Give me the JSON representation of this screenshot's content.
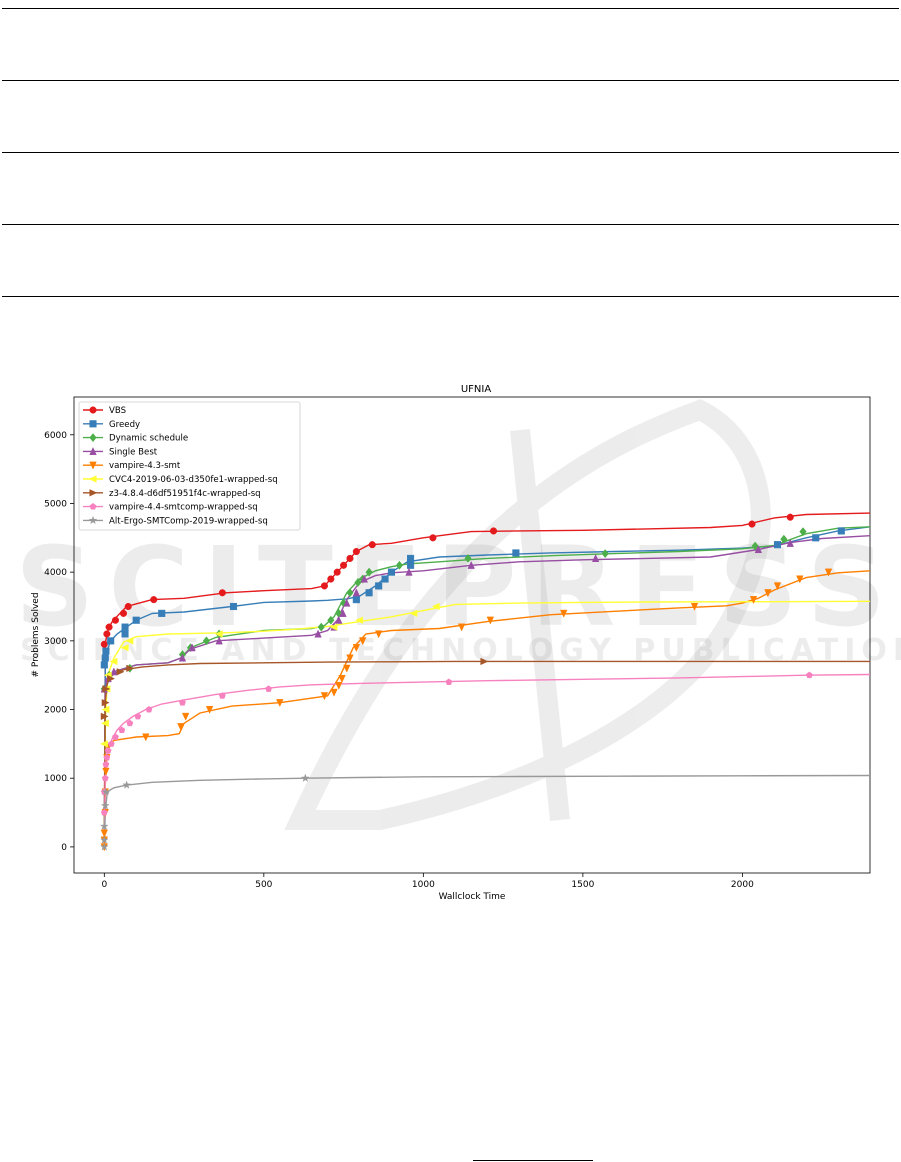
{
  "chart_data": {
    "type": "line",
    "title": "UFNIA",
    "xlabel": "Wallclock Time",
    "ylabel": "# Problems Solved",
    "xlim": [
      -95,
      2400
    ],
    "ylim": [
      -380,
      6550
    ],
    "xticks": [
      0,
      500,
      1000,
      1500,
      2000
    ],
    "yticks": [
      0,
      1000,
      2000,
      3000,
      4000,
      5000,
      6000
    ],
    "grid": false,
    "legend_position": "top-left",
    "series": [
      {
        "name": "VBS",
        "color": "#e41a1c",
        "marker": "circle",
        "x": [
          0,
          3,
          8,
          15,
          25,
          45,
          70,
          150,
          250,
          380,
          500,
          650,
          690,
          710,
          730,
          760,
          790,
          830,
          900,
          1000,
          1150,
          1300,
          1500,
          1700,
          1900,
          2000,
          2100,
          2200,
          2400
        ],
        "y": [
          0,
          2950,
          3100,
          3200,
          3280,
          3380,
          3500,
          3600,
          3620,
          3700,
          3730,
          3760,
          3800,
          3900,
          4000,
          4150,
          4300,
          4400,
          4420,
          4500,
          4590,
          4600,
          4610,
          4630,
          4650,
          4680,
          4790,
          4840,
          4860
        ]
      },
      {
        "name": "Greedy",
        "color": "#377eb8",
        "marker": "square",
        "x": [
          0,
          3,
          8,
          20,
          40,
          70,
          100,
          150,
          250,
          400,
          500,
          650,
          700,
          730,
          760,
          800,
          850,
          900,
          950,
          1050,
          1200,
          1400,
          1600,
          1800,
          2000,
          2100,
          2200,
          2300,
          2400
        ],
        "y": [
          0,
          2650,
          2850,
          3000,
          3100,
          3200,
          3300,
          3400,
          3420,
          3500,
          3560,
          3580,
          3590,
          3600,
          3610,
          3650,
          3800,
          4000,
          4150,
          4220,
          4250,
          4280,
          4300,
          4320,
          4350,
          4380,
          4500,
          4600,
          4660
        ]
      },
      {
        "name": "Dynamic schedule",
        "color": "#4daf4a",
        "marker": "diamond",
        "x": [
          0,
          3,
          10,
          30,
          100,
          200,
          240,
          270,
          350,
          500,
          650,
          690,
          720,
          760,
          800,
          850,
          900,
          950,
          1050,
          1200,
          1400,
          1600,
          1800,
          2000,
          2100,
          2200,
          2300,
          2400
        ],
        "y": [
          0,
          2300,
          2450,
          2550,
          2650,
          2680,
          2750,
          2900,
          3050,
          3150,
          3180,
          3220,
          3350,
          3700,
          3900,
          4020,
          4080,
          4120,
          4150,
          4200,
          4240,
          4270,
          4300,
          4340,
          4390,
          4560,
          4640,
          4660
        ]
      },
      {
        "name": "Single Best",
        "color": "#984ea3",
        "marker": "triangle-up",
        "x": [
          0,
          3,
          10,
          30,
          100,
          200,
          240,
          270,
          350,
          500,
          650,
          700,
          730,
          760,
          800,
          850,
          900,
          1000,
          1150,
          1300,
          1500,
          1700,
          1900,
          2050,
          2150,
          2250,
          2400
        ],
        "y": [
          0,
          2300,
          2450,
          2550,
          2650,
          2680,
          2750,
          2880,
          3000,
          3040,
          3080,
          3150,
          3300,
          3600,
          3850,
          3950,
          3990,
          4020,
          4100,
          4150,
          4180,
          4200,
          4220,
          4330,
          4430,
          4490,
          4530
        ]
      },
      {
        "name": "vampire-4.3-smt",
        "color": "#ff7f00",
        "marker": "triangle-down",
        "x": [
          0,
          3,
          8,
          15,
          30,
          100,
          200,
          235,
          250,
          300,
          400,
          550,
          700,
          740,
          780,
          820,
          900,
          1050,
          1200,
          1400,
          1600,
          1800,
          1950,
          2000,
          2050,
          2100,
          2200,
          2300,
          2400
        ],
        "y": [
          0,
          900,
          1300,
          1480,
          1550,
          1600,
          1620,
          1650,
          1800,
          1950,
          2050,
          2100,
          2200,
          2500,
          2900,
          3100,
          3150,
          3180,
          3280,
          3380,
          3430,
          3480,
          3510,
          3550,
          3620,
          3740,
          3920,
          3990,
          4020
        ]
      },
      {
        "name": "CVC4-2019-06-03-d350fe1-wrapped-sq",
        "color": "#ffff33",
        "marker": "triangle-left",
        "x": [
          0,
          3,
          8,
          15,
          30,
          60,
          100,
          200,
          300,
          400,
          500,
          600,
          700,
          800,
          900,
          1000,
          1100,
          1300,
          1500,
          1700,
          1900,
          2100,
          2400
        ],
        "y": [
          0,
          1800,
          2300,
          2550,
          2750,
          2980,
          3060,
          3100,
          3110,
          3120,
          3140,
          3170,
          3210,
          3280,
          3350,
          3440,
          3530,
          3550,
          3560,
          3565,
          3568,
          3570,
          3575
        ]
      },
      {
        "name": "z3-4.8.4-d6df51951f4c-wrapped-sq",
        "color": "#a65628",
        "marker": "triangle-right",
        "x": [
          0,
          3,
          8,
          15,
          30,
          60,
          120,
          200,
          300,
          500,
          700,
          900,
          1100,
          1190,
          1400,
          1800,
          2400
        ],
        "y": [
          0,
          2100,
          2350,
          2450,
          2520,
          2580,
          2620,
          2650,
          2670,
          2680,
          2690,
          2695,
          2700,
          2700,
          2700,
          2700,
          2700
        ]
      },
      {
        "name": "vampire-4.4-smtcomp-wrapped-sq",
        "color": "#f781bf",
        "marker": "pentagon",
        "x": [
          0,
          3,
          8,
          15,
          25,
          40,
          60,
          90,
          130,
          180,
          250,
          350,
          450,
          550,
          650,
          800,
          1000,
          1200,
          1500,
          1800,
          2000,
          2200,
          2400
        ],
        "y": [
          0,
          1000,
          1300,
          1450,
          1580,
          1700,
          1800,
          1900,
          2000,
          2080,
          2140,
          2220,
          2280,
          2330,
          2360,
          2380,
          2400,
          2420,
          2440,
          2460,
          2480,
          2500,
          2510
        ]
      },
      {
        "name": "Alt-Ergo-SMTComp-2019-wrapped-sq",
        "color": "#999999",
        "marker": "star",
        "x": [
          0,
          3,
          8,
          15,
          30,
          70,
          150,
          300,
          500,
          630,
          800,
          1000,
          1300,
          1600,
          2000,
          2400
        ],
        "y": [
          0,
          500,
          750,
          820,
          860,
          900,
          940,
          970,
          990,
          1000,
          1010,
          1020,
          1025,
          1030,
          1035,
          1040
        ]
      }
    ],
    "markers": {
      "VBS": [
        [
          0,
          2950
        ],
        [
          8,
          3100
        ],
        [
          15,
          3200
        ],
        [
          35,
          3300
        ],
        [
          60,
          3400
        ],
        [
          75,
          3500
        ],
        [
          155,
          3600
        ],
        [
          370,
          3700
        ],
        [
          690,
          3800
        ],
        [
          710,
          3900
        ],
        [
          730,
          4000
        ],
        [
          750,
          4100
        ],
        [
          770,
          4200
        ],
        [
          790,
          4300
        ],
        [
          840,
          4400
        ],
        [
          1030,
          4500
        ],
        [
          1220,
          4600
        ],
        [
          2030,
          4700
        ],
        [
          2150,
          4800
        ]
      ],
      "Greedy": [
        [
          0,
          2650
        ],
        [
          3,
          2750
        ],
        [
          5,
          2850
        ],
        [
          20,
          3000
        ],
        [
          65,
          3100
        ],
        [
          65,
          3200
        ],
        [
          100,
          3300
        ],
        [
          180,
          3400
        ],
        [
          405,
          3500
        ],
        [
          790,
          3600
        ],
        [
          830,
          3700
        ],
        [
          860,
          3800
        ],
        [
          880,
          3900
        ],
        [
          900,
          4000
        ],
        [
          960,
          4100
        ],
        [
          960,
          4200
        ],
        [
          1290,
          4280
        ],
        [
          2110,
          4400
        ],
        [
          2230,
          4500
        ],
        [
          2310,
          4600
        ]
      ],
      "Dynamic schedule": [
        [
          0,
          2300
        ],
        [
          15,
          2500
        ],
        [
          80,
          2600
        ],
        [
          245,
          2800
        ],
        [
          270,
          2900
        ],
        [
          320,
          3000
        ],
        [
          360,
          3100
        ],
        [
          680,
          3200
        ],
        [
          710,
          3300
        ],
        [
          735,
          3400
        ],
        [
          750,
          3550
        ],
        [
          770,
          3700
        ],
        [
          795,
          3850
        ],
        [
          810,
          3900
        ],
        [
          830,
          4000
        ],
        [
          925,
          4100
        ],
        [
          1140,
          4200
        ],
        [
          1570,
          4270
        ],
        [
          2040,
          4380
        ],
        [
          2130,
          4480
        ],
        [
          2190,
          4590
        ]
      ],
      "Single Best": [
        [
          0,
          2300
        ],
        [
          12,
          2450
        ],
        [
          30,
          2550
        ],
        [
          245,
          2750
        ],
        [
          275,
          2900
        ],
        [
          360,
          3000
        ],
        [
          670,
          3100
        ],
        [
          720,
          3200
        ],
        [
          735,
          3300
        ],
        [
          748,
          3400
        ],
        [
          760,
          3550
        ],
        [
          790,
          3700
        ],
        [
          815,
          3900
        ],
        [
          955,
          4000
        ],
        [
          1150,
          4100
        ],
        [
          1540,
          4200
        ],
        [
          2050,
          4330
        ],
        [
          2150,
          4420
        ]
      ],
      "vampire-4.3-smt": [
        [
          0,
          0
        ],
        [
          0,
          100
        ],
        [
          0,
          200
        ],
        [
          3,
          500
        ],
        [
          3,
          800
        ],
        [
          5,
          1100
        ],
        [
          8,
          1300
        ],
        [
          12,
          1450
        ],
        [
          130,
          1600
        ],
        [
          240,
          1750
        ],
        [
          255,
          1900
        ],
        [
          330,
          2000
        ],
        [
          550,
          2100
        ],
        [
          690,
          2200
        ],
        [
          720,
          2250
        ],
        [
          735,
          2350
        ],
        [
          745,
          2450
        ],
        [
          760,
          2600
        ],
        [
          770,
          2750
        ],
        [
          790,
          2900
        ],
        [
          810,
          3000
        ],
        [
          860,
          3100
        ],
        [
          1120,
          3200
        ],
        [
          1210,
          3300
        ],
        [
          1440,
          3400
        ],
        [
          1850,
          3500
        ],
        [
          2035,
          3600
        ],
        [
          2080,
          3700
        ],
        [
          2110,
          3800
        ],
        [
          2180,
          3900
        ],
        [
          2270,
          4000
        ]
      ],
      "CVC4-2019-06-03-d350fe1-wrapped-sq": [
        [
          0,
          1500
        ],
        [
          3,
          1800
        ],
        [
          5,
          2000
        ],
        [
          8,
          2300
        ],
        [
          12,
          2500
        ],
        [
          30,
          2700
        ],
        [
          65,
          2900
        ],
        [
          80,
          3000
        ],
        [
          360,
          3100
        ],
        [
          720,
          3200
        ],
        [
          800,
          3300
        ],
        [
          970,
          3400
        ],
        [
          1040,
          3500
        ]
      ],
      "z3-4.8.4-d6df51951f4c-wrapped-sq": [
        [
          0,
          1900
        ],
        [
          3,
          2100
        ],
        [
          5,
          2300
        ],
        [
          20,
          2450
        ],
        [
          50,
          2550
        ],
        [
          80,
          2600
        ],
        [
          1190,
          2700
        ]
      ],
      "vampire-4.4-smtcomp-wrapped-sq": [
        [
          0,
          500
        ],
        [
          0,
          800
        ],
        [
          3,
          1000
        ],
        [
          5,
          1200
        ],
        [
          8,
          1300
        ],
        [
          12,
          1400
        ],
        [
          22,
          1500
        ],
        [
          35,
          1600
        ],
        [
          55,
          1700
        ],
        [
          80,
          1800
        ],
        [
          105,
          1900
        ],
        [
          140,
          2000
        ],
        [
          245,
          2100
        ],
        [
          370,
          2200
        ],
        [
          515,
          2300
        ],
        [
          1080,
          2400
        ],
        [
          2210,
          2500
        ]
      ],
      "Alt-Ergo-SMTComp-2019-wrapped-sq": [
        [
          0,
          0
        ],
        [
          0,
          100
        ],
        [
          0,
          300
        ],
        [
          3,
          600
        ],
        [
          5,
          800
        ],
        [
          70,
          900
        ],
        [
          630,
          1000
        ]
      ]
    }
  }
}
